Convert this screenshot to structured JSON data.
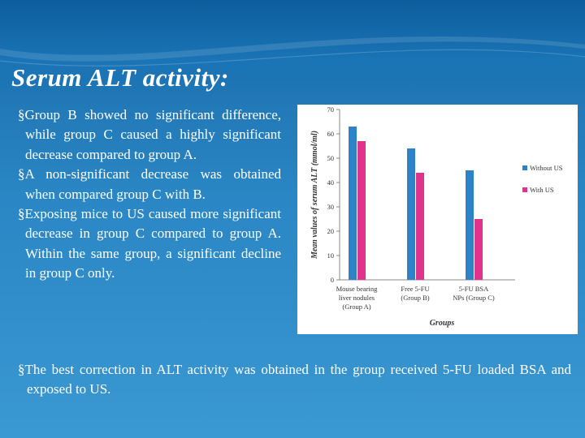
{
  "slide": {
    "title": "Serum ALT activity:",
    "bullets": [
      "§Group B showed no significant difference, while group C caused a highly significant decrease compared to group A.",
      "§A non-significant decrease was obtained when compared group C with B.",
      "§Exposing mice to US caused more significant decrease in group C compared to group A. Within the same group, a significant decline in group C only."
    ],
    "bottom_bullet": "§The best correction in ALT activity was obtained in the group received 5-FU loaded BSA and exposed to US."
  },
  "colors": {
    "without_us": "#2d82c8",
    "with_us": "#e0348c"
  },
  "chart_data": {
    "type": "bar",
    "categories": [
      [
        "Mouse bearing",
        "liver nodules",
        "(Group A)"
      ],
      [
        "Free 5-FU",
        "(Group B)"
      ],
      [
        "5-FU BSA",
        "NPs (Group C)"
      ]
    ],
    "series": [
      {
        "name": "Without US",
        "values": [
          63,
          54,
          45
        ]
      },
      {
        "name": "With US",
        "values": [
          57,
          44,
          25
        ]
      }
    ],
    "xlabel": "Groups",
    "ylabel": "Mean values of serum ALT (mmol/ml)",
    "ylim": [
      0,
      70
    ],
    "yticks": [
      0,
      10,
      20,
      30,
      40,
      50,
      60,
      70
    ],
    "legend_position": "right"
  }
}
